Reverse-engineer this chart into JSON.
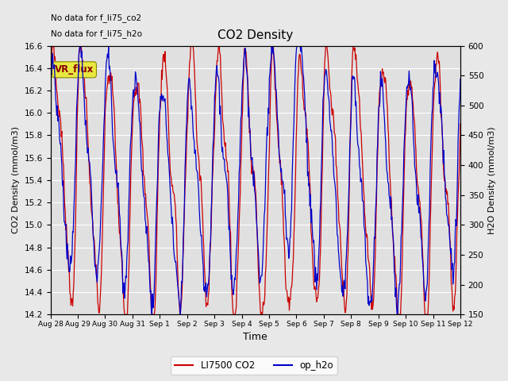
{
  "title": "CO2 Density",
  "xlabel": "Time",
  "ylabel_left": "CO2 Density (mmol/m3)",
  "ylabel_right": "H2O Density (mmol/m3)",
  "text_no_data_1": "No data for f_li75_co2",
  "text_no_data_2": "No data for f_li75_h2o",
  "vr_flux_label": "VR_flux",
  "ylim_left": [
    14.2,
    16.6
  ],
  "ylim_right": [
    150,
    600
  ],
  "yticks_left": [
    14.2,
    14.4,
    14.6,
    14.8,
    15.0,
    15.2,
    15.4,
    15.6,
    15.8,
    16.0,
    16.2,
    16.4,
    16.6
  ],
  "yticks_right": [
    150,
    200,
    250,
    300,
    350,
    400,
    450,
    500,
    550,
    600
  ],
  "xtick_labels": [
    "Aug 28",
    "Aug 29",
    "Aug 30",
    "Aug 31",
    "Sep 1",
    "Sep 2",
    "Sep 3",
    "Sep 4",
    "Sep 5",
    "Sep 6",
    "Sep 7",
    "Sep 8",
    "Sep 9",
    "Sep 10",
    "Sep 11",
    "Sep 12"
  ],
  "legend_co2_label": "LI7500 CO2",
  "legend_h2o_label": "op_h2o",
  "co2_color": "#cc0000",
  "h2o_color": "#0000cc",
  "fig_bg_color": "#e8e8e8",
  "plot_bg_color": "#e0e0e0",
  "grid_color": "#ffffff",
  "vr_flux_bg": "#e8e840",
  "vr_flux_text_color": "#8b0000"
}
